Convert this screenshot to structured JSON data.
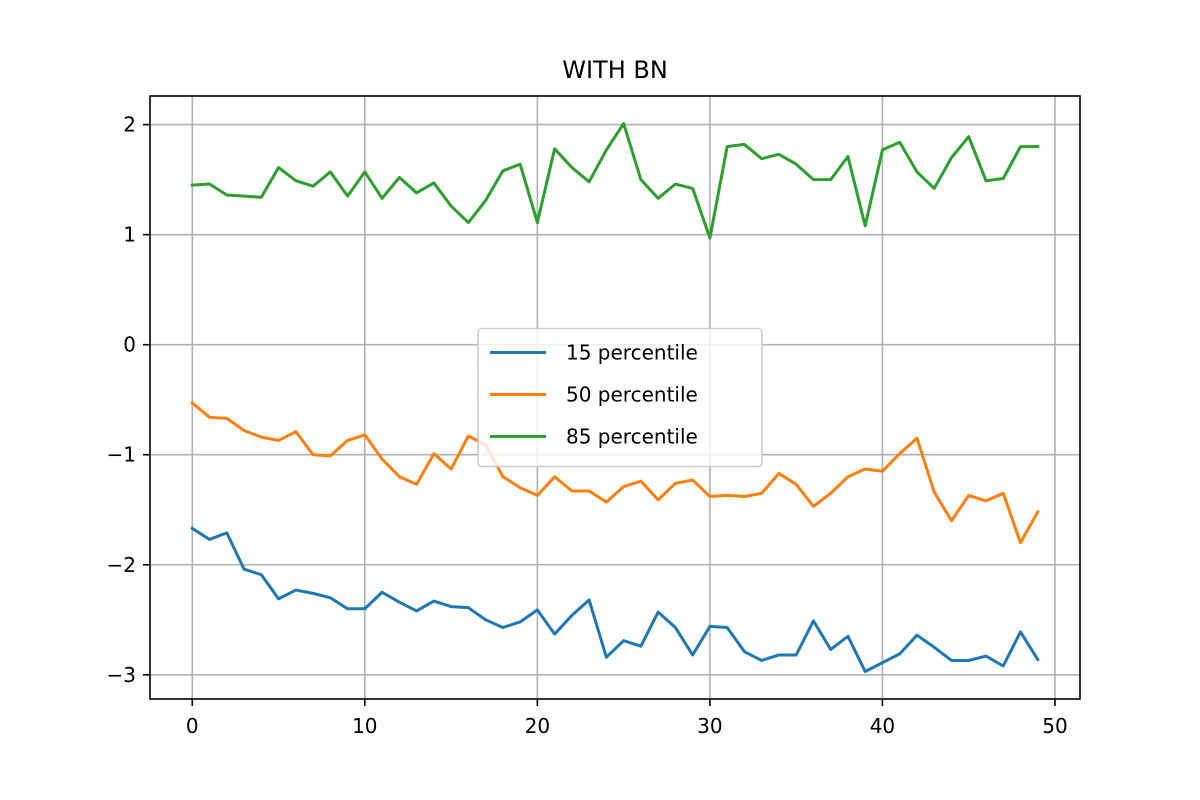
{
  "chart_data": {
    "type": "line",
    "title": "WITH BN",
    "xlabel": "",
    "ylabel": "",
    "xlim": [
      -2.45,
      51.45
    ],
    "ylim": [
      -3.22,
      2.26
    ],
    "xticks": [
      0,
      10,
      20,
      30,
      40,
      50
    ],
    "yticks": [
      -3,
      -2,
      -1,
      0,
      1,
      2
    ],
    "xtick_labels": [
      "0",
      "10",
      "20",
      "30",
      "40",
      "50"
    ],
    "ytick_labels": [
      "−3",
      "−2",
      "−1",
      "0",
      "1",
      "2"
    ],
    "grid": true,
    "legend_position": "center",
    "x": [
      0,
      1,
      2,
      3,
      4,
      5,
      6,
      7,
      8,
      9,
      10,
      11,
      12,
      13,
      14,
      15,
      16,
      17,
      18,
      19,
      20,
      21,
      22,
      23,
      24,
      25,
      26,
      27,
      28,
      29,
      30,
      31,
      32,
      33,
      34,
      35,
      36,
      37,
      38,
      39,
      40,
      41,
      42,
      43,
      44,
      45,
      46,
      47,
      48,
      49
    ],
    "series": [
      {
        "name": "15 percentile",
        "color": "#1f77b4",
        "values": [
          -1.67,
          -1.77,
          -1.71,
          -2.04,
          -2.09,
          -2.31,
          -2.23,
          -2.26,
          -2.3,
          -2.4,
          -2.4,
          -2.25,
          -2.34,
          -2.42,
          -2.33,
          -2.38,
          -2.39,
          -2.5,
          -2.57,
          -2.52,
          -2.41,
          -2.63,
          -2.46,
          -2.32,
          -2.84,
          -2.69,
          -2.74,
          -2.43,
          -2.57,
          -2.82,
          -2.56,
          -2.57,
          -2.79,
          -2.87,
          -2.82,
          -2.82,
          -2.51,
          -2.77,
          -2.65,
          -2.97,
          -2.89,
          -2.81,
          -2.64,
          -2.75,
          -2.87,
          -2.87,
          -2.83,
          -2.92,
          -2.61,
          -2.86
        ]
      },
      {
        "name": "50 percentile",
        "color": "#ff7f0e",
        "values": [
          -0.53,
          -0.66,
          -0.67,
          -0.78,
          -0.84,
          -0.87,
          -0.79,
          -1.0,
          -1.01,
          -0.87,
          -0.82,
          -1.04,
          -1.2,
          -1.27,
          -0.99,
          -1.13,
          -0.83,
          -0.91,
          -1.2,
          -1.3,
          -1.37,
          -1.2,
          -1.33,
          -1.33,
          -1.43,
          -1.29,
          -1.24,
          -1.41,
          -1.26,
          -1.23,
          -1.38,
          -1.37,
          -1.38,
          -1.35,
          -1.17,
          -1.27,
          -1.47,
          -1.35,
          -1.2,
          -1.13,
          -1.15,
          -0.99,
          -0.85,
          -1.34,
          -1.6,
          -1.37,
          -1.42,
          -1.35,
          -1.8,
          -1.52
        ]
      },
      {
        "name": "85 percentile",
        "color": "#2ca02c",
        "values": [
          1.45,
          1.46,
          1.36,
          1.35,
          1.34,
          1.61,
          1.49,
          1.44,
          1.57,
          1.35,
          1.57,
          1.33,
          1.52,
          1.38,
          1.47,
          1.26,
          1.11,
          1.31,
          1.58,
          1.64,
          1.11,
          1.78,
          1.61,
          1.48,
          1.77,
          2.01,
          1.5,
          1.33,
          1.46,
          1.42,
          0.97,
          1.8,
          1.82,
          1.69,
          1.73,
          1.64,
          1.5,
          1.5,
          1.71,
          1.08,
          1.77,
          1.84,
          1.57,
          1.42,
          1.7,
          1.89,
          1.49,
          1.51,
          1.8,
          1.8
        ]
      }
    ]
  }
}
